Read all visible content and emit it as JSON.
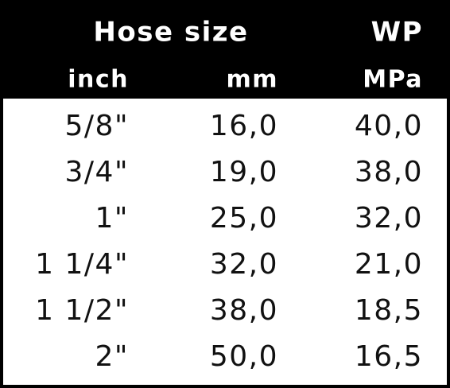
{
  "header": {
    "title": "Hose size",
    "wp": "WP",
    "units": [
      "inch",
      "mm",
      "MPa"
    ]
  },
  "table": {
    "rows": [
      [
        "5/8\"",
        "16,0",
        "40,0"
      ],
      [
        "3/4\"",
        "19,0",
        "38,0"
      ],
      [
        "1\"",
        "25,0",
        "32,0"
      ],
      [
        "1 1/4\"",
        "32,0",
        "21,0"
      ],
      [
        "1 1/2\"",
        "38,0",
        "18,5"
      ],
      [
        "2\"",
        "50,0",
        "16,5"
      ]
    ]
  }
}
